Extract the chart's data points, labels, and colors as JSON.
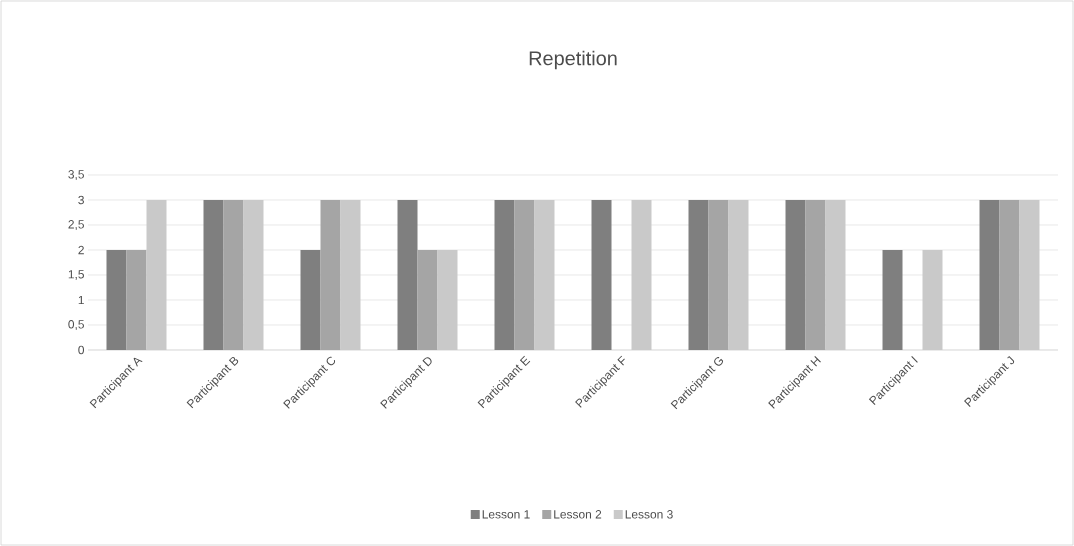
{
  "chart_data": {
    "type": "bar",
    "title": "Repetition",
    "categories": [
      "Participant A",
      "Participant B",
      "Participant C",
      "Participant D",
      "Participant E",
      "Participant F",
      "Participant G",
      "Participant H",
      "Participant I",
      "Participant J"
    ],
    "series": [
      {
        "name": "Lesson 1",
        "color": "#7f7f7f",
        "values": [
          2,
          3,
          2,
          3,
          3,
          3,
          3,
          3,
          2,
          3
        ]
      },
      {
        "name": "Lesson 2",
        "color": "#a5a5a5",
        "values": [
          2,
          3,
          3,
          2,
          3,
          0,
          3,
          3,
          0,
          3
        ]
      },
      {
        "name": "Lesson 3",
        "color": "#c9c9c9",
        "values": [
          3,
          3,
          3,
          2,
          3,
          3,
          3,
          3,
          2,
          3
        ]
      }
    ],
    "ylim": [
      0,
      3.5
    ],
    "yticks": [
      0,
      {
        "value": 0.5,
        "label": "0,5"
      },
      1,
      {
        "value": 1.5,
        "label": "1,5"
      },
      2,
      {
        "value": 2.5,
        "label": "2,5"
      },
      3,
      {
        "value": 3.5,
        "label": "3,5"
      }
    ],
    "grid": "y",
    "legend": "bottom"
  }
}
